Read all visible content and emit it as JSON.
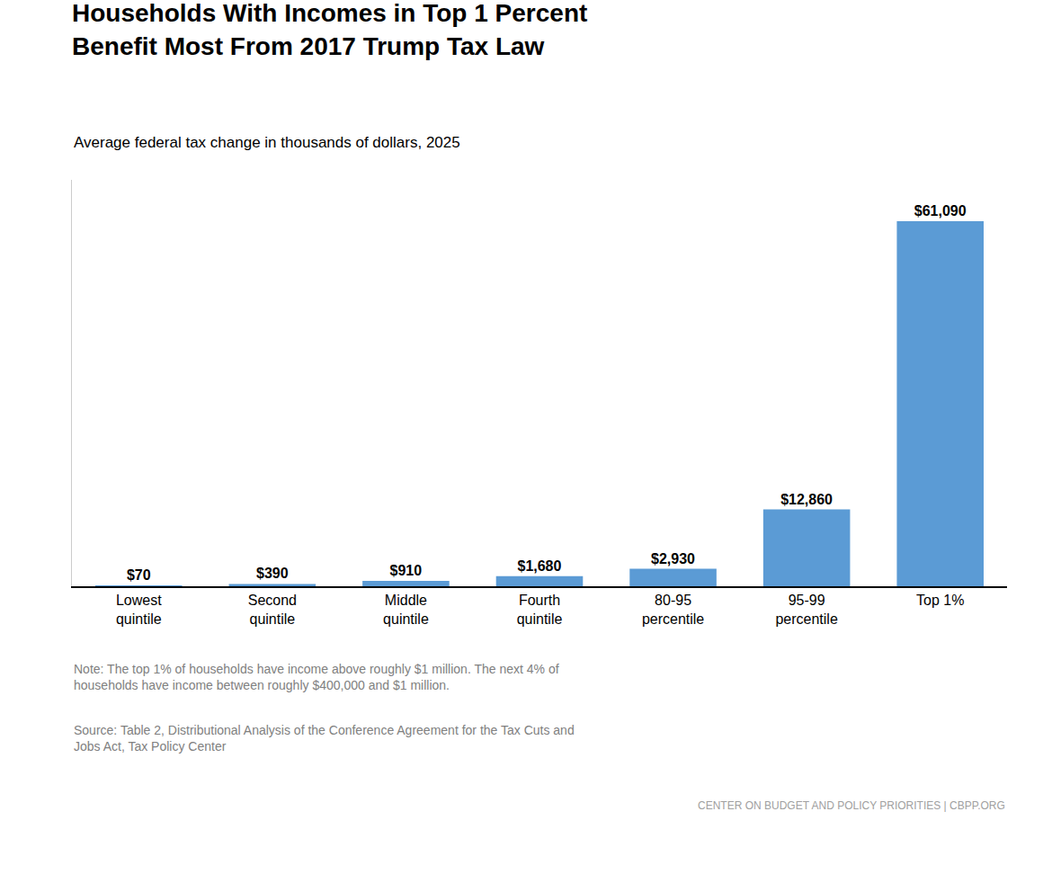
{
  "chart_data": {
    "type": "bar",
    "title": "Households With Incomes in Top 1 Percent\nBenefit Most From 2017 Trump Tax Law",
    "subtitle": "Average federal tax change in thousands of dollars, 2025",
    "categories": [
      "Lowest\nquintile",
      "Second\nquintile",
      "Middle\nquintile",
      "Fourth\nquintile",
      "80-95\npercentile",
      "95-99\npercentile",
      "Top 1%"
    ],
    "values": [
      70,
      390,
      910,
      1680,
      2930,
      12860,
      61090
    ],
    "value_labels": [
      "$70",
      "$390",
      "$910",
      "$1,680",
      "$2,930",
      "$12,860",
      "$61,090"
    ],
    "color": "#5b9bd5",
    "ylim": [
      0,
      68000
    ],
    "data_labels": true,
    "tick_labels": "x",
    "grid": false,
    "annotations": [
      "Note: The top 1% of households have income above roughly $1 million. The next 4% of\nhouseholds have income between roughly $400,000 and $1 million.",
      "Source: Table 2, Distributional Analysis of the Conference Agreement for the Tax Cuts and\nJobs Act, Tax Policy Center",
      "CENTER ON BUDGET AND POLICY PRIORITIES | CBPP.ORG"
    ]
  }
}
